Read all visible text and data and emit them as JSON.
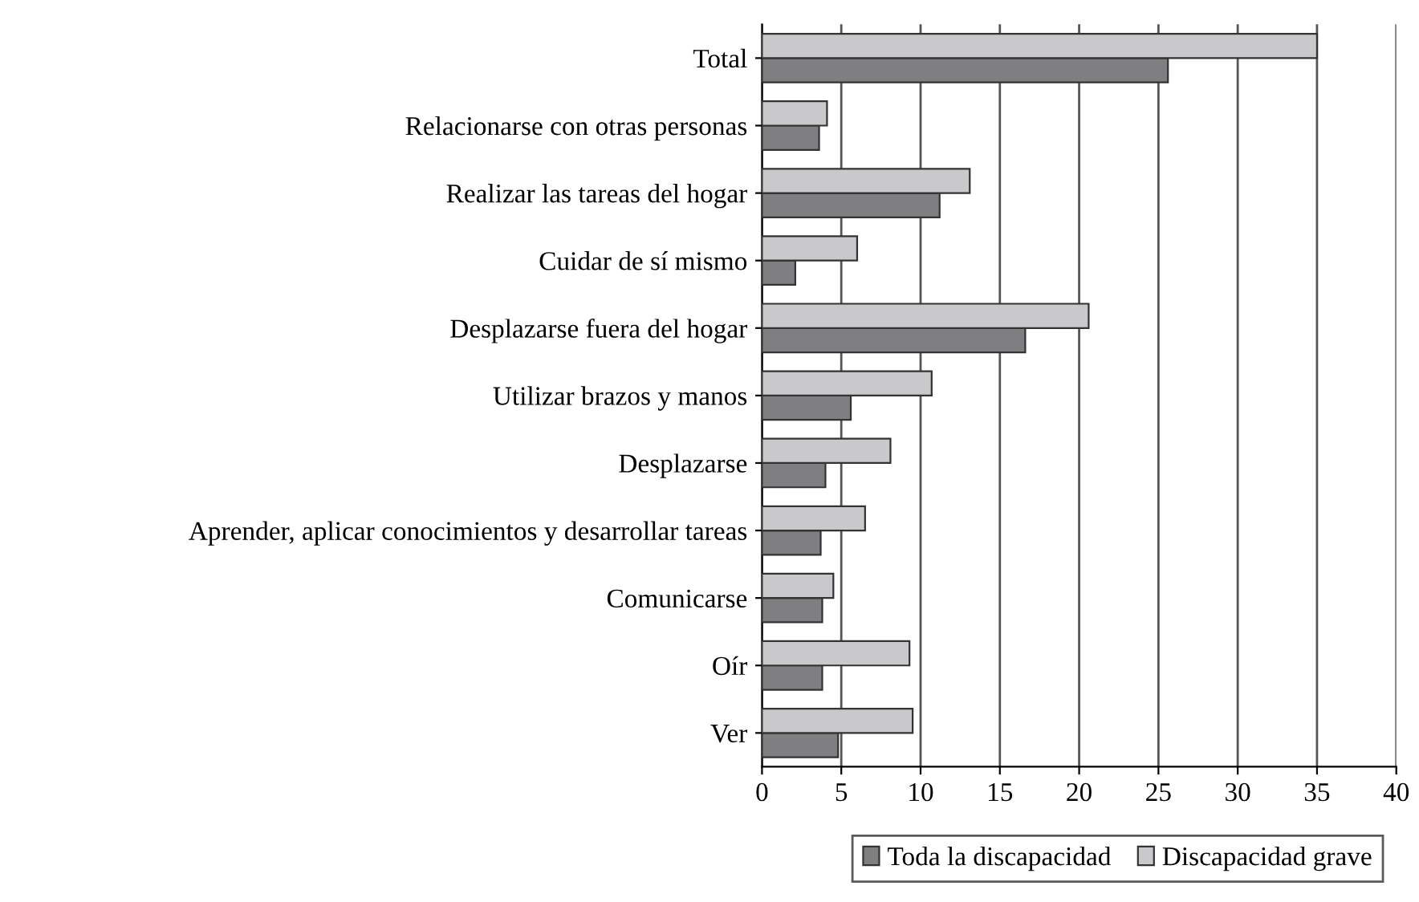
{
  "chart_data": {
    "type": "bar",
    "orientation": "horizontal",
    "categories": [
      "Total",
      "Relacionarse con otras personas",
      "Realizar las tareas del hogar",
      "Cuidar de sí mismo",
      "Desplazarse fuera del hogar",
      "Utilizar brazos y manos",
      "Desplazarse",
      "Aprender, aplicar conocimientos y desarrollar tareas",
      "Comunicarse",
      "Oír",
      "Ver"
    ],
    "series": [
      {
        "name": "Toda la discapacidad",
        "color": "#7f7f81",
        "values": [
          25.6,
          3.6,
          11.2,
          2.1,
          16.6,
          5.6,
          4.0,
          3.7,
          3.8,
          3.8,
          4.8
        ]
      },
      {
        "name": "Discapacidad grave",
        "color": "#c9c9cb",
        "values": [
          35.0,
          4.1,
          13.1,
          6.0,
          20.6,
          10.7,
          8.1,
          6.5,
          4.5,
          9.3,
          9.5
        ]
      }
    ],
    "xlim": [
      0,
      40
    ],
    "xticks": [
      0,
      5,
      10,
      15,
      20,
      25,
      30,
      35,
      40
    ],
    "grid": "x",
    "legend": "bottom"
  }
}
